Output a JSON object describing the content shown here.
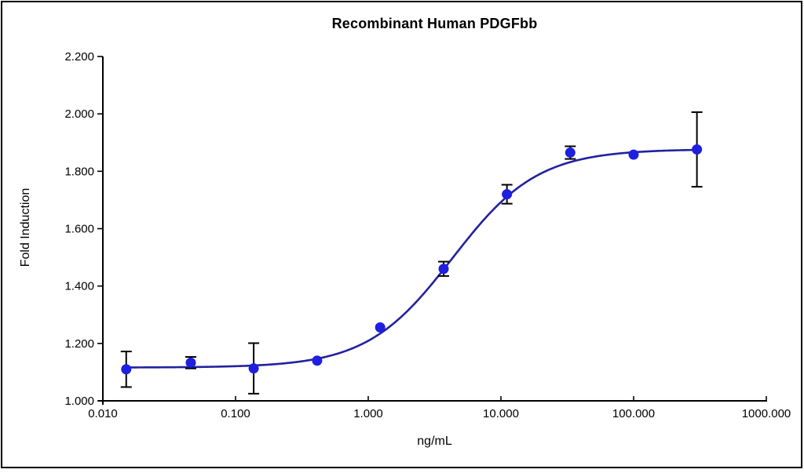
{
  "chart_data": {
    "type": "scatter",
    "title": "Recombinant Human PDGFbb",
    "xlabel": "ng/mL",
    "ylabel": "Fold Induction",
    "x_scale": "log",
    "xlim": [
      0.01,
      1000
    ],
    "ylim": [
      1.0,
      2.2
    ],
    "grid": false,
    "legend": null,
    "x_ticks": [
      {
        "v": 0.01,
        "label": "0.010"
      },
      {
        "v": 0.1,
        "label": "0.100"
      },
      {
        "v": 1,
        "label": "1.000"
      },
      {
        "v": 10,
        "label": "10.000"
      },
      {
        "v": 100,
        "label": "100.000"
      },
      {
        "v": 1000,
        "label": "1000.000"
      }
    ],
    "y_ticks": [
      {
        "v": 1.0,
        "label": "1.000"
      },
      {
        "v": 1.2,
        "label": "1.200"
      },
      {
        "v": 1.4,
        "label": "1.400"
      },
      {
        "v": 1.6,
        "label": "1.600"
      },
      {
        "v": 1.8,
        "label": "1.800"
      },
      {
        "v": 2.0,
        "label": "2.000"
      },
      {
        "v": 2.2,
        "label": "2.200"
      }
    ],
    "points": [
      {
        "x": 0.015,
        "y": 1.11,
        "err": 0.062
      },
      {
        "x": 0.046,
        "y": 1.133,
        "err": 0.02
      },
      {
        "x": 0.137,
        "y": 1.113,
        "err": 0.088
      },
      {
        "x": 0.412,
        "y": 1.14,
        "err": 0
      },
      {
        "x": 1.23,
        "y": 1.256,
        "err": 0
      },
      {
        "x": 3.7,
        "y": 1.46,
        "err": 0.025
      },
      {
        "x": 11.1,
        "y": 1.72,
        "err": 0.033
      },
      {
        "x": 33.3,
        "y": 1.865,
        "err": 0.022
      },
      {
        "x": 100,
        "y": 1.858,
        "err": 0
      },
      {
        "x": 300,
        "y": 1.876,
        "err": 0.13
      }
    ],
    "fit_curve": {
      "model": "4PL",
      "bottom": 1.116,
      "top": 1.877,
      "ec50": 4.3,
      "hill": 1.35,
      "x_start": 0.0148,
      "x_end": 300
    },
    "colors": {
      "marker": "#1f1fe0",
      "curve": "#22229e",
      "error_bar": "#000000",
      "axis": "#000000",
      "text": "#000000",
      "frame_border": "#000000",
      "background": "#ffffff"
    }
  }
}
